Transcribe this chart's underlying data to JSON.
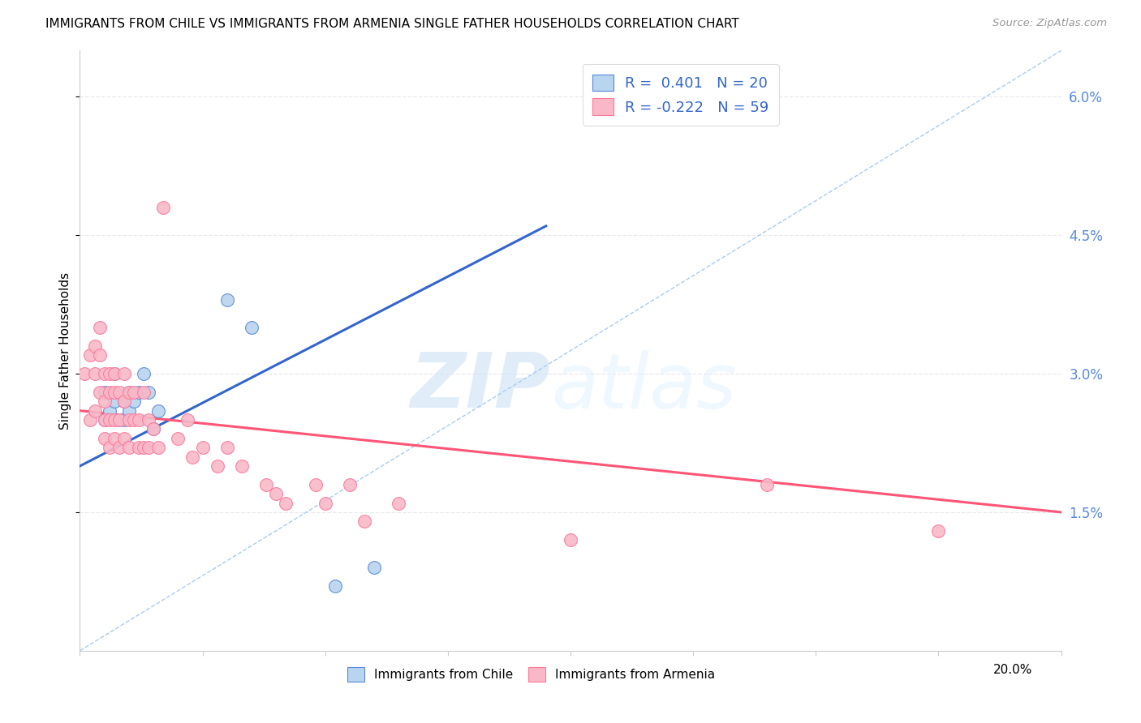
{
  "title": "IMMIGRANTS FROM CHILE VS IMMIGRANTS FROM ARMENIA SINGLE FATHER HOUSEHOLDS CORRELATION CHART",
  "source": "Source: ZipAtlas.com",
  "ylabel": "Single Father Households",
  "y_ticks_pct": [
    1.5,
    3.0,
    4.5,
    6.0
  ],
  "y_tick_labels": [
    "1.5%",
    "3.0%",
    "4.5%",
    "6.0%"
  ],
  "xlim": [
    0.0,
    0.2
  ],
  "ylim": [
    0.0,
    0.065
  ],
  "chile_fill": "#b8d4ee",
  "armenia_fill": "#f8b8c8",
  "chile_edge": "#5588dd",
  "armenia_edge": "#ff7799",
  "chile_line_color": "#3366cc",
  "armenia_line_color": "#ff5577",
  "diagonal_color": "#aaccee",
  "R_chile": 0.401,
  "N_chile": 20,
  "R_armenia": -0.222,
  "N_armenia": 59,
  "watermark_zip": "ZIP",
  "watermark_atlas": "atlas",
  "grid_color": "#e8e8f0",
  "chile_line_x0": 0.0,
  "chile_line_y0": 0.02,
  "chile_line_x1": 0.095,
  "chile_line_y1": 0.046,
  "armenia_line_x0": 0.0,
  "armenia_line_y0": 0.026,
  "armenia_line_x1": 0.2,
  "armenia_line_y1": 0.015,
  "chile_points_x": [
    0.005,
    0.005,
    0.006,
    0.007,
    0.007,
    0.008,
    0.009,
    0.009,
    0.01,
    0.01,
    0.011,
    0.012,
    0.013,
    0.014,
    0.015,
    0.016,
    0.03,
    0.035,
    0.052,
    0.06
  ],
  "chile_points_y": [
    0.028,
    0.025,
    0.026,
    0.03,
    0.027,
    0.025,
    0.027,
    0.025,
    0.028,
    0.026,
    0.027,
    0.028,
    0.03,
    0.028,
    0.024,
    0.026,
    0.038,
    0.035,
    0.007,
    0.009
  ],
  "armenia_points_x": [
    0.001,
    0.002,
    0.002,
    0.003,
    0.003,
    0.003,
    0.004,
    0.004,
    0.004,
    0.005,
    0.005,
    0.005,
    0.005,
    0.006,
    0.006,
    0.006,
    0.006,
    0.007,
    0.007,
    0.007,
    0.007,
    0.008,
    0.008,
    0.008,
    0.009,
    0.009,
    0.009,
    0.01,
    0.01,
    0.01,
    0.011,
    0.011,
    0.012,
    0.012,
    0.013,
    0.013,
    0.014,
    0.014,
    0.015,
    0.016,
    0.017,
    0.02,
    0.022,
    0.023,
    0.025,
    0.028,
    0.03,
    0.033,
    0.038,
    0.04,
    0.042,
    0.048,
    0.05,
    0.055,
    0.058,
    0.065,
    0.1,
    0.14,
    0.175
  ],
  "armenia_points_y": [
    0.03,
    0.032,
    0.025,
    0.033,
    0.03,
    0.026,
    0.035,
    0.032,
    0.028,
    0.03,
    0.027,
    0.025,
    0.023,
    0.03,
    0.028,
    0.025,
    0.022,
    0.028,
    0.025,
    0.023,
    0.03,
    0.028,
    0.025,
    0.022,
    0.03,
    0.027,
    0.023,
    0.028,
    0.025,
    0.022,
    0.028,
    0.025,
    0.025,
    0.022,
    0.028,
    0.022,
    0.025,
    0.022,
    0.024,
    0.022,
    0.048,
    0.023,
    0.025,
    0.021,
    0.022,
    0.02,
    0.022,
    0.02,
    0.018,
    0.017,
    0.016,
    0.018,
    0.016,
    0.018,
    0.014,
    0.016,
    0.012,
    0.018,
    0.013
  ]
}
